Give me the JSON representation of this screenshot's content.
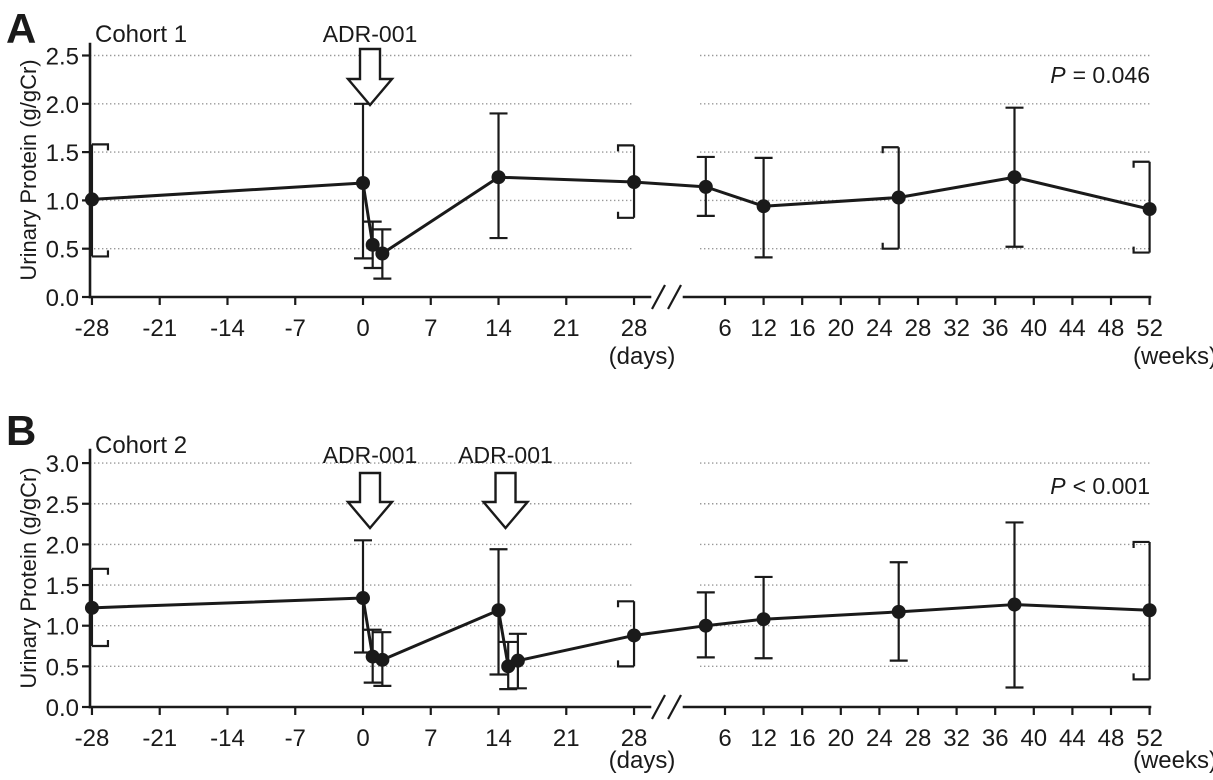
{
  "figure": {
    "background": "#ffffff",
    "ink_color": "#1a1a1a",
    "grid_color": "#999999",
    "arrow_fill": "#ffffff"
  },
  "chart_data": [
    {
      "type": "line",
      "panel_label": "A",
      "title": "Cohort 1",
      "p_italic": "P",
      "p_rest": "= 0.046",
      "ylabel": "Urinary Protein (g/gCr)",
      "ylim": [
        0,
        2.6
      ],
      "yticks": [
        "0.0",
        "0.5",
        "1.0",
        "1.5",
        "2.0",
        "2.5"
      ],
      "grid": "dotted-horizontal",
      "legend_position": "none",
      "xaxis": {
        "day_ticks": [
          "-28",
          "-21",
          "-14",
          "-7",
          "0",
          "7",
          "14",
          "21",
          "28"
        ],
        "week_ticks": [
          "6",
          "12",
          "16",
          "20",
          "24",
          "28",
          "32",
          "36",
          "40",
          "44",
          "48",
          "52"
        ],
        "day_unit": "(days)",
        "week_unit": "(weeks)",
        "axis_break": true
      },
      "dose_arrows": [
        {
          "label": "ADR-001",
          "day": 0
        }
      ],
      "series": [
        {
          "name": "cohort1-urinary-protein-mean-sd",
          "points": [
            {
              "axis": "day",
              "x": -28,
              "y": 1.01,
              "lo": 0.42,
              "hi": 1.58,
              "cap": "bracket-right"
            },
            {
              "axis": "day",
              "x": 0,
              "y": 1.18,
              "lo": 0.4,
              "hi": 2.0,
              "cap": "t"
            },
            {
              "axis": "day",
              "x": 1,
              "y": 0.54,
              "lo": 0.3,
              "hi": 0.78,
              "cap": "t"
            },
            {
              "axis": "day",
              "x": 2,
              "y": 0.45,
              "lo": 0.19,
              "hi": 0.7,
              "cap": "t"
            },
            {
              "axis": "day",
              "x": 14,
              "y": 1.24,
              "lo": 0.61,
              "hi": 1.9,
              "cap": "t"
            },
            {
              "axis": "day",
              "x": 28,
              "y": 1.19,
              "lo": 0.82,
              "hi": 1.57,
              "cap": "bracket-left"
            },
            {
              "axis": "week",
              "x": 4,
              "y": 1.14,
              "lo": 0.84,
              "hi": 1.45,
              "cap": "t"
            },
            {
              "axis": "week",
              "x": 12,
              "y": 0.94,
              "lo": 0.41,
              "hi": 1.44,
              "cap": "t"
            },
            {
              "axis": "week",
              "x": 26,
              "y": 1.03,
              "lo": 0.5,
              "hi": 1.55,
              "cap": "bracket-left"
            },
            {
              "axis": "week",
              "x": 38,
              "y": 1.24,
              "lo": 0.52,
              "hi": 1.96,
              "cap": "t"
            },
            {
              "axis": "week",
              "x": 52,
              "y": 0.91,
              "lo": 0.46,
              "hi": 1.4,
              "cap": "bracket-left"
            }
          ]
        }
      ]
    },
    {
      "type": "line",
      "panel_label": "B",
      "title": "Cohort 2",
      "p_italic": "P",
      "p_rest": "< 0.001",
      "ylabel": "Urinary Protein (g/gCr)",
      "ylim": [
        0,
        3.15
      ],
      "yticks": [
        "0.0",
        "0.5",
        "1.0",
        "1.5",
        "2.0",
        "2.5",
        "3.0"
      ],
      "grid": "dotted-horizontal",
      "legend_position": "none",
      "xaxis": {
        "day_ticks": [
          "-28",
          "-21",
          "-14",
          "-7",
          "0",
          "7",
          "14",
          "21",
          "28"
        ],
        "week_ticks": [
          "6",
          "12",
          "16",
          "20",
          "24",
          "28",
          "32",
          "36",
          "40",
          "44",
          "48",
          "52"
        ],
        "day_unit": "(days)",
        "week_unit": "(weeks)",
        "axis_break": true
      },
      "dose_arrows": [
        {
          "label": "ADR-001",
          "day": 0
        },
        {
          "label": "ADR-001",
          "day": 14
        }
      ],
      "series": [
        {
          "name": "cohort2-urinary-protein-mean-sd",
          "points": [
            {
              "axis": "day",
              "x": -28,
              "y": 1.22,
              "lo": 0.75,
              "hi": 1.7,
              "cap": "bracket-right"
            },
            {
              "axis": "day",
              "x": 0,
              "y": 1.34,
              "lo": 0.67,
              "hi": 2.05,
              "cap": "t"
            },
            {
              "axis": "day",
              "x": 1,
              "y": 0.62,
              "lo": 0.3,
              "hi": 0.95,
              "cap": "t"
            },
            {
              "axis": "day",
              "x": 2,
              "y": 0.58,
              "lo": 0.26,
              "hi": 0.92,
              "cap": "t"
            },
            {
              "axis": "day",
              "x": 14,
              "y": 1.19,
              "lo": 0.4,
              "hi": 1.94,
              "cap": "t"
            },
            {
              "axis": "day",
              "x": 15,
              "y": 0.5,
              "lo": 0.22,
              "hi": 0.8,
              "cap": "t"
            },
            {
              "axis": "day",
              "x": 16,
              "y": 0.57,
              "lo": 0.23,
              "hi": 0.9,
              "cap": "t"
            },
            {
              "axis": "day",
              "x": 28,
              "y": 0.88,
              "lo": 0.5,
              "hi": 1.3,
              "cap": "bracket-left"
            },
            {
              "axis": "week",
              "x": 4,
              "y": 1.0,
              "lo": 0.61,
              "hi": 1.41,
              "cap": "t"
            },
            {
              "axis": "week",
              "x": 12,
              "y": 1.08,
              "lo": 0.6,
              "hi": 1.6,
              "cap": "t"
            },
            {
              "axis": "week",
              "x": 26,
              "y": 1.17,
              "lo": 0.57,
              "hi": 1.78,
              "cap": "t"
            },
            {
              "axis": "week",
              "x": 38,
              "y": 1.26,
              "lo": 0.24,
              "hi": 2.27,
              "cap": "t"
            },
            {
              "axis": "week",
              "x": 52,
              "y": 1.19,
              "lo": 0.34,
              "hi": 2.03,
              "cap": "bracket-left"
            }
          ]
        }
      ]
    }
  ]
}
